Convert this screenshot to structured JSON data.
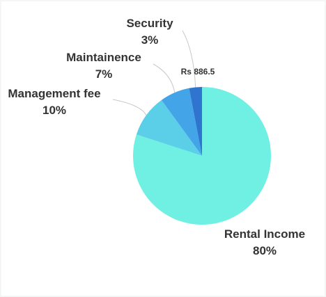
{
  "chart_data": {
    "type": "pie",
    "slices": [
      {
        "label": "Rental Income",
        "percent_label": "80%",
        "value": 80,
        "color": "#6ff0e3"
      },
      {
        "label": "Management fee",
        "percent_label": "10%",
        "value": 10,
        "color": "#5ccfe8"
      },
      {
        "label": "Maintainence",
        "percent_label": "7%",
        "value": 7,
        "color": "#43a4e8"
      },
      {
        "label": "Security",
        "percent_label": "3%",
        "value": 3,
        "color": "#2f74cf"
      }
    ],
    "annotation": "Rs 886.5",
    "leader_line_color": "#c8c8c8"
  }
}
